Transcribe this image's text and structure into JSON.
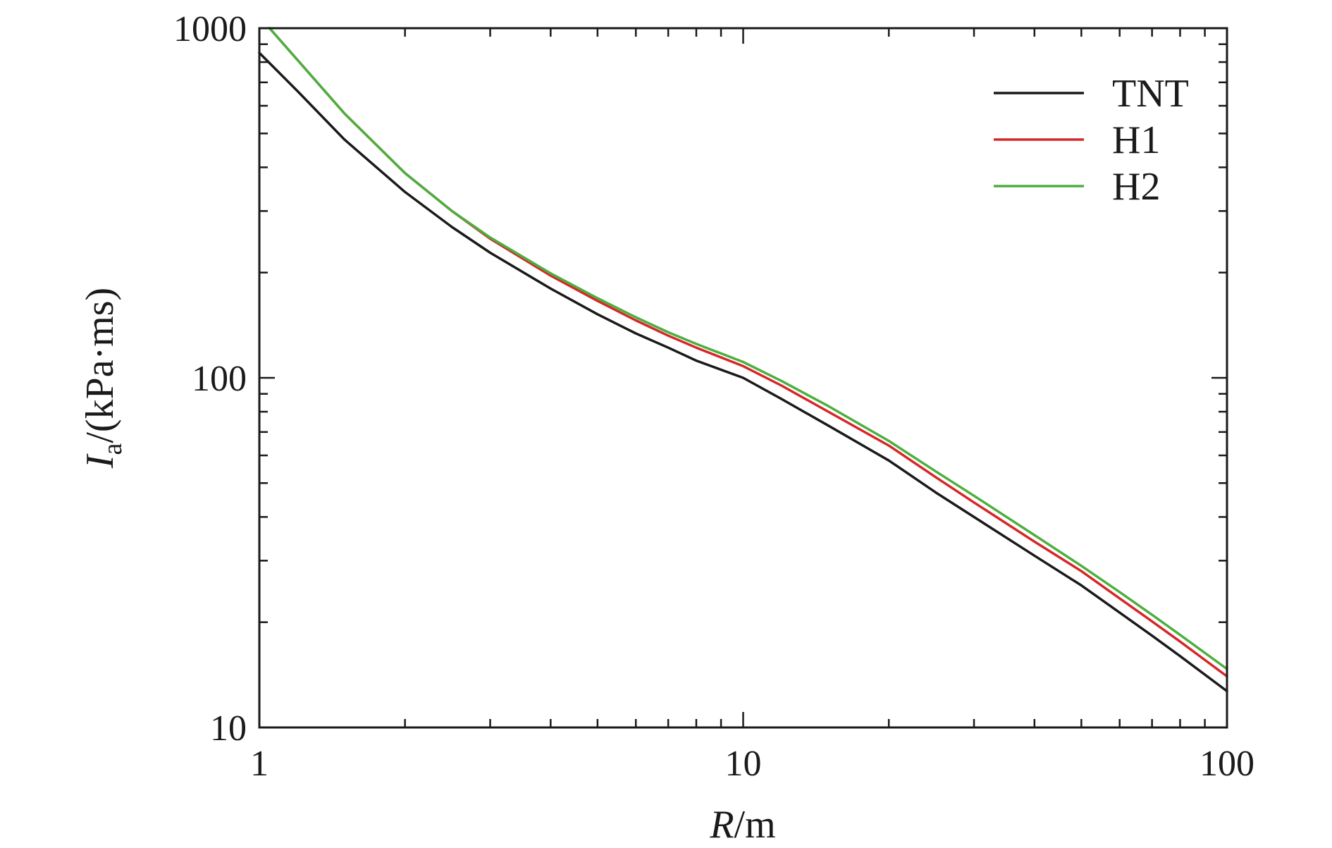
{
  "chart_data": {
    "type": "line",
    "xscale": "log",
    "yscale": "log",
    "xlim": [
      1,
      100
    ],
    "ylim": [
      10,
      1000
    ],
    "x_ticks": [
      "1",
      "10",
      "100"
    ],
    "y_ticks": [
      "10",
      "100",
      "1000"
    ],
    "xlabel": {
      "var": "R",
      "unit": "/m"
    },
    "ylabel": {
      "var": "I",
      "sub": "a",
      "unit": "/(kPa·ms)"
    },
    "grid": false,
    "legend_position": "top-right",
    "series": [
      {
        "name": "TNT",
        "color": "#1a1a1a",
        "x": [
          1,
          1.2,
          1.5,
          2,
          2.5,
          3,
          4,
          5,
          6,
          7,
          8,
          10,
          12,
          15,
          20,
          25,
          30,
          40,
          50,
          60,
          70,
          80,
          100
        ],
        "y": [
          850,
          660,
          480,
          340,
          270,
          228,
          180,
          152,
          134,
          122,
          112,
          100,
          87,
          73,
          58,
          47,
          40,
          31,
          25.5,
          21.3,
          18.3,
          16,
          12.7
        ]
      },
      {
        "name": "H1",
        "color": "#d62728",
        "x": [
          1.05,
          1.2,
          1.5,
          2,
          2.5,
          3,
          4,
          5,
          6,
          7,
          8,
          10,
          12,
          15,
          20,
          25,
          30,
          40,
          50,
          60,
          70,
          80,
          100
        ],
        "y": [
          1000,
          810,
          570,
          385,
          300,
          250,
          196,
          166,
          146,
          132,
          122,
          108,
          95,
          80,
          64,
          52,
          44,
          34,
          28,
          23.4,
          20.1,
          17.6,
          14
        ]
      },
      {
        "name": "H2",
        "color": "#4caf3f",
        "x": [
          1.05,
          1.2,
          1.5,
          2,
          2.5,
          3,
          4,
          5,
          6,
          7,
          8,
          10,
          12,
          15,
          20,
          25,
          30,
          40,
          50,
          60,
          70,
          80,
          100
        ],
        "y": [
          1000,
          810,
          570,
          385,
          300,
          252,
          199,
          169,
          149,
          135,
          125,
          111,
          98,
          83,
          66,
          54,
          46,
          35.5,
          29,
          24.4,
          21,
          18.4,
          14.7
        ]
      }
    ]
  }
}
